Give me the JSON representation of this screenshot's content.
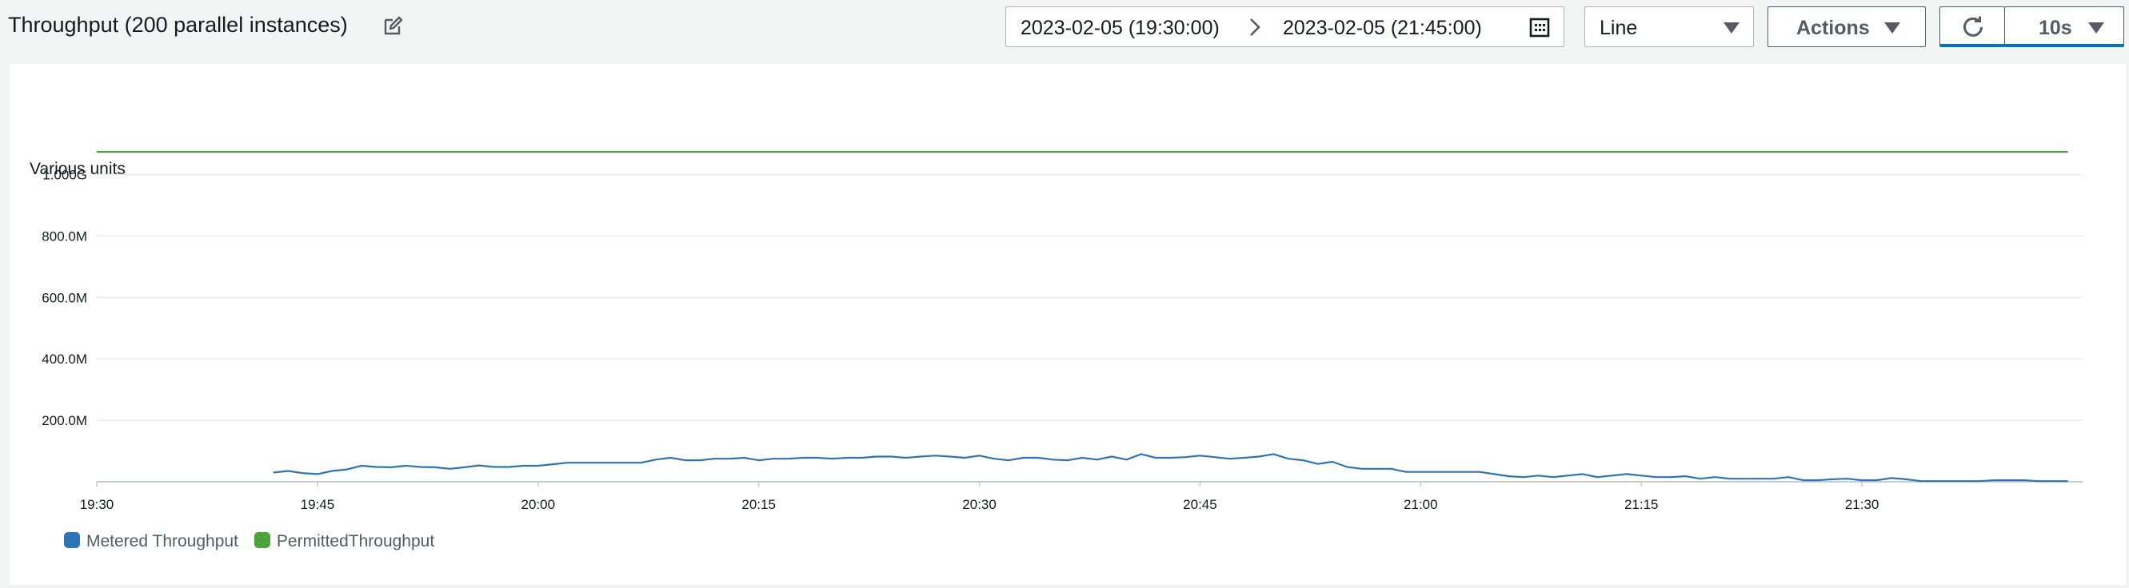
{
  "header": {
    "title": "Throughput (200 parallel instances)",
    "start_date": "2023-02-05 (19:30:00)",
    "end_date": "2023-02-05 (21:45:00)",
    "chart_type_select": "Line",
    "actions_label": "Actions",
    "refresh_interval": "10s"
  },
  "icons": {
    "edit": "edit-icon",
    "range_arrow": "chevron-right-icon",
    "calendar": "calendar-icon",
    "refresh": "refresh-icon",
    "caret": "caret-down-icon"
  },
  "colors": {
    "metered": "#2e73b8",
    "permitted": "#4ca33b",
    "accent": "#0073bb"
  },
  "chart_data": {
    "type": "line",
    "ylabel": "Various units",
    "ylim": [
      0,
      1100000000
    ],
    "y_ticks": [
      200000000,
      400000000,
      600000000,
      800000000,
      1000000000
    ],
    "y_tick_labels": [
      "200.0M",
      "400.0M",
      "600.0M",
      "800.0M",
      "1.000G"
    ],
    "xlim": [
      "19:30",
      "21:45"
    ],
    "x_ticks": [
      "19:30",
      "19:45",
      "20:00",
      "20:15",
      "20:30",
      "20:45",
      "21:00",
      "21:15",
      "21:30"
    ],
    "grid": true,
    "legend_placement": "bottom-left",
    "series": [
      {
        "name": "Metered Throughput",
        "color": "#2e73b8",
        "x": [
          "19:42",
          "19:43",
          "19:44",
          "19:45",
          "19:46",
          "19:47",
          "19:48",
          "19:49",
          "19:50",
          "19:51",
          "19:52",
          "19:53",
          "19:54",
          "19:55",
          "19:56",
          "19:57",
          "19:58",
          "19:59",
          "20:00",
          "20:01",
          "20:02",
          "20:03",
          "20:04",
          "20:05",
          "20:06",
          "20:07",
          "20:08",
          "20:09",
          "20:10",
          "20:11",
          "20:12",
          "20:13",
          "20:14",
          "20:15",
          "20:16",
          "20:17",
          "20:18",
          "20:19",
          "20:20",
          "20:21",
          "20:22",
          "20:23",
          "20:24",
          "20:25",
          "20:26",
          "20:27",
          "20:28",
          "20:29",
          "20:30",
          "20:31",
          "20:32",
          "20:33",
          "20:34",
          "20:35",
          "20:36",
          "20:37",
          "20:38",
          "20:39",
          "20:40",
          "20:41",
          "20:42",
          "20:43",
          "20:44",
          "20:45",
          "20:46",
          "20:47",
          "20:48",
          "20:49",
          "20:50",
          "20:51",
          "20:52",
          "20:53",
          "20:54",
          "20:55",
          "20:56",
          "20:57",
          "20:58",
          "20:59",
          "21:00",
          "21:01",
          "21:02",
          "21:03",
          "21:04",
          "21:05",
          "21:06",
          "21:07",
          "21:08",
          "21:09",
          "21:10",
          "21:11",
          "21:12",
          "21:13",
          "21:14",
          "21:15",
          "21:16",
          "21:17",
          "21:18",
          "21:19",
          "21:20",
          "21:21",
          "21:22",
          "21:23",
          "21:24",
          "21:25",
          "21:26",
          "21:27",
          "21:28",
          "21:29",
          "21:30",
          "21:31",
          "21:32",
          "21:33",
          "21:34",
          "21:35",
          "21:36",
          "21:37",
          "21:38",
          "21:39",
          "21:40",
          "21:41",
          "21:42",
          "21:43",
          "21:44"
        ],
        "values": [
          30000000,
          35000000,
          28000000,
          25000000,
          35000000,
          40000000,
          52000000,
          48000000,
          47000000,
          52000000,
          48000000,
          47000000,
          42000000,
          47000000,
          53000000,
          48000000,
          48000000,
          52000000,
          52000000,
          57000000,
          62000000,
          62000000,
          62000000,
          62000000,
          62000000,
          62000000,
          72000000,
          78000000,
          70000000,
          70000000,
          75000000,
          75000000,
          78000000,
          70000000,
          75000000,
          75000000,
          78000000,
          78000000,
          75000000,
          78000000,
          78000000,
          82000000,
          82000000,
          78000000,
          82000000,
          85000000,
          82000000,
          78000000,
          85000000,
          75000000,
          70000000,
          78000000,
          78000000,
          72000000,
          70000000,
          78000000,
          72000000,
          82000000,
          72000000,
          90000000,
          78000000,
          78000000,
          80000000,
          85000000,
          80000000,
          75000000,
          78000000,
          82000000,
          90000000,
          75000000,
          70000000,
          58000000,
          65000000,
          48000000,
          42000000,
          42000000,
          42000000,
          32000000,
          32000000,
          32000000,
          32000000,
          32000000,
          32000000,
          25000000,
          18000000,
          15000000,
          20000000,
          15000000,
          20000000,
          25000000,
          15000000,
          20000000,
          25000000,
          20000000,
          15000000,
          15000000,
          18000000,
          10000000,
          15000000,
          10000000,
          10000000,
          10000000,
          10000000,
          15000000,
          5000000,
          5000000,
          8000000,
          10000000,
          5000000,
          5000000,
          12000000,
          8000000,
          2000000,
          2000000,
          2000000,
          2000000,
          2000000,
          5000000,
          5000000,
          5000000,
          2000000,
          2000000,
          2000000
        ]
      },
      {
        "name": "PermittedThroughput",
        "color": "#4ca33b",
        "x": [
          "19:30",
          "21:44"
        ],
        "values": [
          1073741824,
          1073741824
        ]
      }
    ]
  }
}
